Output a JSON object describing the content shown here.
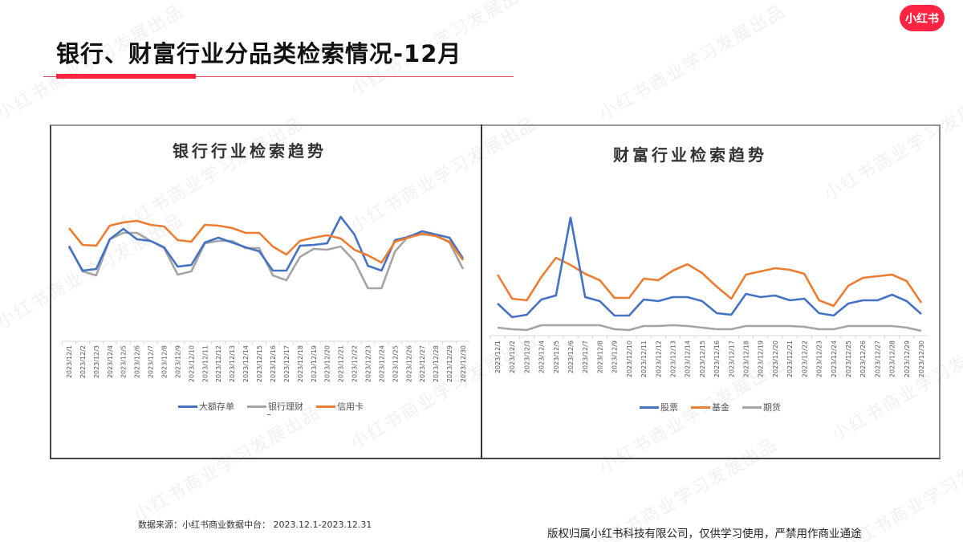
{
  "header": {
    "title": "银行、财富行业分品类检索情况-12月",
    "logo_text": "小红书",
    "accent_color": "#ff2442"
  },
  "watermark_text": "小红书商业学习发展出品",
  "footer": {
    "source": "数据来源：小红书商业数据中台： 2023.12.1-2023.12.31",
    "copyright": "版权归属小红书科技有限公司，仅供学习使用，严禁用作商业通途"
  },
  "charts": {
    "left": {
      "title": "银行行业检索趋势",
      "legend": [
        {
          "label": "大额存单",
          "color": "#4472c4"
        },
        {
          "label": "银行理财",
          "color": "#a5a5a5"
        },
        {
          "label": "信用卡",
          "color": "#ed7d31"
        }
      ]
    },
    "right": {
      "title": "财富行业检索趋势",
      "legend": [
        {
          "label": "股票",
          "color": "#4472c4"
        },
        {
          "label": "基金",
          "color": "#ed7d31"
        },
        {
          "label": "期货",
          "color": "#a5a5a5"
        }
      ]
    }
  },
  "chart_data": [
    {
      "type": "line",
      "title": "银行行业检索趋势",
      "xlabel": "",
      "ylabel": "",
      "ylim": [
        0,
        160
      ],
      "grid": false,
      "legend_position": "bottom",
      "categories": [
        "2023/12/1",
        "2023/12/2",
        "2023/12/3",
        "2023/12/4",
        "2023/12/5",
        "2023/12/6",
        "2023/12/7",
        "2023/12/8",
        "2023/12/9",
        "2023/12/10",
        "2023/12/11",
        "2023/12/12",
        "2023/12/13",
        "2023/12/14",
        "2023/12/15",
        "2023/12/16",
        "2023/12/17",
        "2023/12/18",
        "2023/12/19",
        "2023/12/20",
        "2023/12/21",
        "2023/12/22",
        "2023/12/23",
        "2023/12/24",
        "2023/12/25",
        "2023/12/26",
        "2023/12/27",
        "2023/12/28",
        "2023/12/29",
        "2023/12/30"
      ],
      "series": [
        {
          "name": "大额存单",
          "color": "#4472c4",
          "values": [
            118,
            88,
            90,
            127,
            140,
            127,
            125,
            117,
            93,
            95,
            123,
            129,
            123,
            117,
            112,
            88,
            88,
            119,
            120,
            122,
            155,
            133,
            94,
            88,
            126,
            130,
            137,
            133,
            129,
            103
          ]
        },
        {
          "name": "银行理财",
          "color": "#a5a5a5",
          "values": [
            119,
            87,
            82,
            127,
            135,
            135,
            125,
            116,
            83,
            87,
            122,
            125,
            125,
            116,
            116,
            82,
            76,
            105,
            115,
            114,
            118,
            100,
            66,
            66,
            112,
            131,
            133,
            132,
            123,
            90
          ]
        },
        {
          "name": "信用卡",
          "color": "#ed7d31",
          "values": [
            141,
            120,
            119,
            144,
            148,
            150,
            145,
            143,
            126,
            124,
            145,
            144,
            141,
            135,
            135,
            118,
            108,
            125,
            129,
            132,
            128,
            114,
            107,
            98,
            124,
            129,
            134,
            131,
            124,
            101
          ]
        }
      ]
    },
    {
      "type": "line",
      "title": "财富行业检索趋势",
      "xlabel": "",
      "ylabel": "",
      "ylim": [
        0,
        160
      ],
      "grid": false,
      "legend_position": "bottom",
      "categories": [
        "2023/12/1",
        "2023/12/2",
        "2023/12/3",
        "2023/12/4",
        "2023/12/5",
        "2023/12/6",
        "2023/12/7",
        "2023/12/8",
        "2023/12/9",
        "2023/12/10",
        "2023/12/11",
        "2023/12/12",
        "2023/12/13",
        "2023/12/14",
        "2023/12/15",
        "2023/12/16",
        "2023/12/17",
        "2023/12/18",
        "2023/12/19",
        "2023/12/20",
        "2023/12/21",
        "2023/12/22",
        "2023/12/23",
        "2023/12/24",
        "2023/12/25",
        "2023/12/26",
        "2023/12/27",
        "2023/12/28",
        "2023/12/29",
        "2023/12/30"
      ],
      "series": [
        {
          "name": "股票",
          "color": "#4472c4",
          "values": [
            40,
            23,
            26,
            45,
            50,
            147,
            48,
            43,
            25,
            25,
            45,
            43,
            48,
            48,
            43,
            28,
            26,
            52,
            48,
            50,
            44,
            46,
            28,
            25,
            40,
            44,
            44,
            51,
            43,
            27
          ]
        },
        {
          "name": "基金",
          "color": "#ed7d31",
          "values": [
            76,
            46,
            44,
            73,
            97,
            88,
            77,
            69,
            47,
            47,
            71,
            69,
            81,
            89,
            78,
            61,
            46,
            76,
            80,
            84,
            82,
            77,
            44,
            37,
            62,
            72,
            74,
            76,
            68,
            41
          ]
        },
        {
          "name": "期货",
          "color": "#a5a5a5",
          "values": [
            10,
            8,
            7,
            13,
            13,
            13,
            13,
            13,
            8,
            7,
            12,
            12,
            13,
            12,
            10,
            8,
            8,
            12,
            12,
            12,
            12,
            11,
            8,
            8,
            12,
            12,
            12,
            12,
            10,
            6
          ]
        }
      ]
    }
  ]
}
